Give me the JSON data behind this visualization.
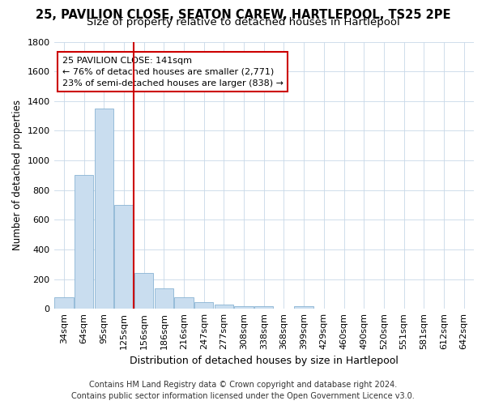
{
  "title1": "25, PAVILION CLOSE, SEATON CAREW, HARTLEPOOL, TS25 2PE",
  "title2": "Size of property relative to detached houses in Hartlepool",
  "xlabel": "Distribution of detached houses by size in Hartlepool",
  "ylabel": "Number of detached properties",
  "categories": [
    "34sqm",
    "64sqm",
    "95sqm",
    "125sqm",
    "156sqm",
    "186sqm",
    "216sqm",
    "247sqm",
    "277sqm",
    "308sqm",
    "338sqm",
    "368sqm",
    "399sqm",
    "429sqm",
    "460sqm",
    "490sqm",
    "520sqm",
    "551sqm",
    "581sqm",
    "612sqm",
    "642sqm"
  ],
  "values": [
    80,
    900,
    1350,
    700,
    240,
    140,
    80,
    45,
    30,
    20,
    15,
    0,
    20,
    0,
    0,
    0,
    0,
    0,
    0,
    0,
    0
  ],
  "bar_color": "#c9ddef",
  "bar_edge_color": "#8ab4d4",
  "vline_color": "#cc0000",
  "annotation_text": "25 PAVILION CLOSE: 141sqm\n← 76% of detached houses are smaller (2,771)\n23% of semi-detached houses are larger (838) →",
  "annotation_box_color": "#ffffff",
  "annotation_box_edge_color": "#cc0000",
  "ylim": [
    0,
    1800
  ],
  "yticks": [
    0,
    200,
    400,
    600,
    800,
    1000,
    1200,
    1400,
    1600,
    1800
  ],
  "footer1": "Contains HM Land Registry data © Crown copyright and database right 2024.",
  "footer2": "Contains public sector information licensed under the Open Government Licence v3.0.",
  "bg_color": "#ffffff",
  "grid_color": "#c8d8e8",
  "title1_fontsize": 10.5,
  "title2_fontsize": 9.5,
  "xlabel_fontsize": 9,
  "ylabel_fontsize": 8.5,
  "footer_fontsize": 7,
  "tick_fontsize": 8,
  "annot_fontsize": 8
}
